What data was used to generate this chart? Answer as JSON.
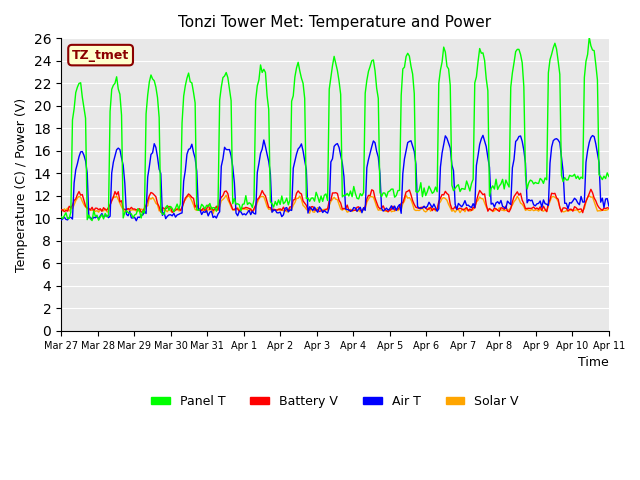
{
  "title": "Tonzi Tower Met: Temperature and Power",
  "xlabel": "Time",
  "ylabel": "Temperature (C) / Power (V)",
  "ylim": [
    0,
    26
  ],
  "yticks": [
    0,
    2,
    4,
    6,
    8,
    10,
    12,
    14,
    16,
    18,
    20,
    22,
    24,
    26
  ],
  "label_text": "TZ_tmet",
  "label_bg": "#FFFFCC",
  "label_border": "#8B0000",
  "label_color": "#8B0000",
  "plot_bg": "#E8E8E8",
  "fig_bg": "#FFFFFF",
  "series_colors": {
    "Panel T": "#00FF00",
    "Battery V": "#FF0000",
    "Air T": "#0000FF",
    "Solar V": "#FFA500"
  },
  "legend_labels": [
    "Panel T",
    "Battery V",
    "Air T",
    "Solar V"
  ],
  "x_tick_labels": [
    "Mar 27",
    "Mar 28",
    "Mar 29",
    "Mar 30",
    "Mar 31",
    "Apr 1",
    "Apr 2",
    "Apr 3",
    "Apr 4",
    "Apr 5",
    "Apr 6",
    "Apr 7",
    "Apr 8",
    "Apr 9",
    "Apr 10",
    "Apr 11"
  ],
  "num_points": 336,
  "base_battery": 10.8,
  "base_solar": 10.7,
  "seed": 42
}
